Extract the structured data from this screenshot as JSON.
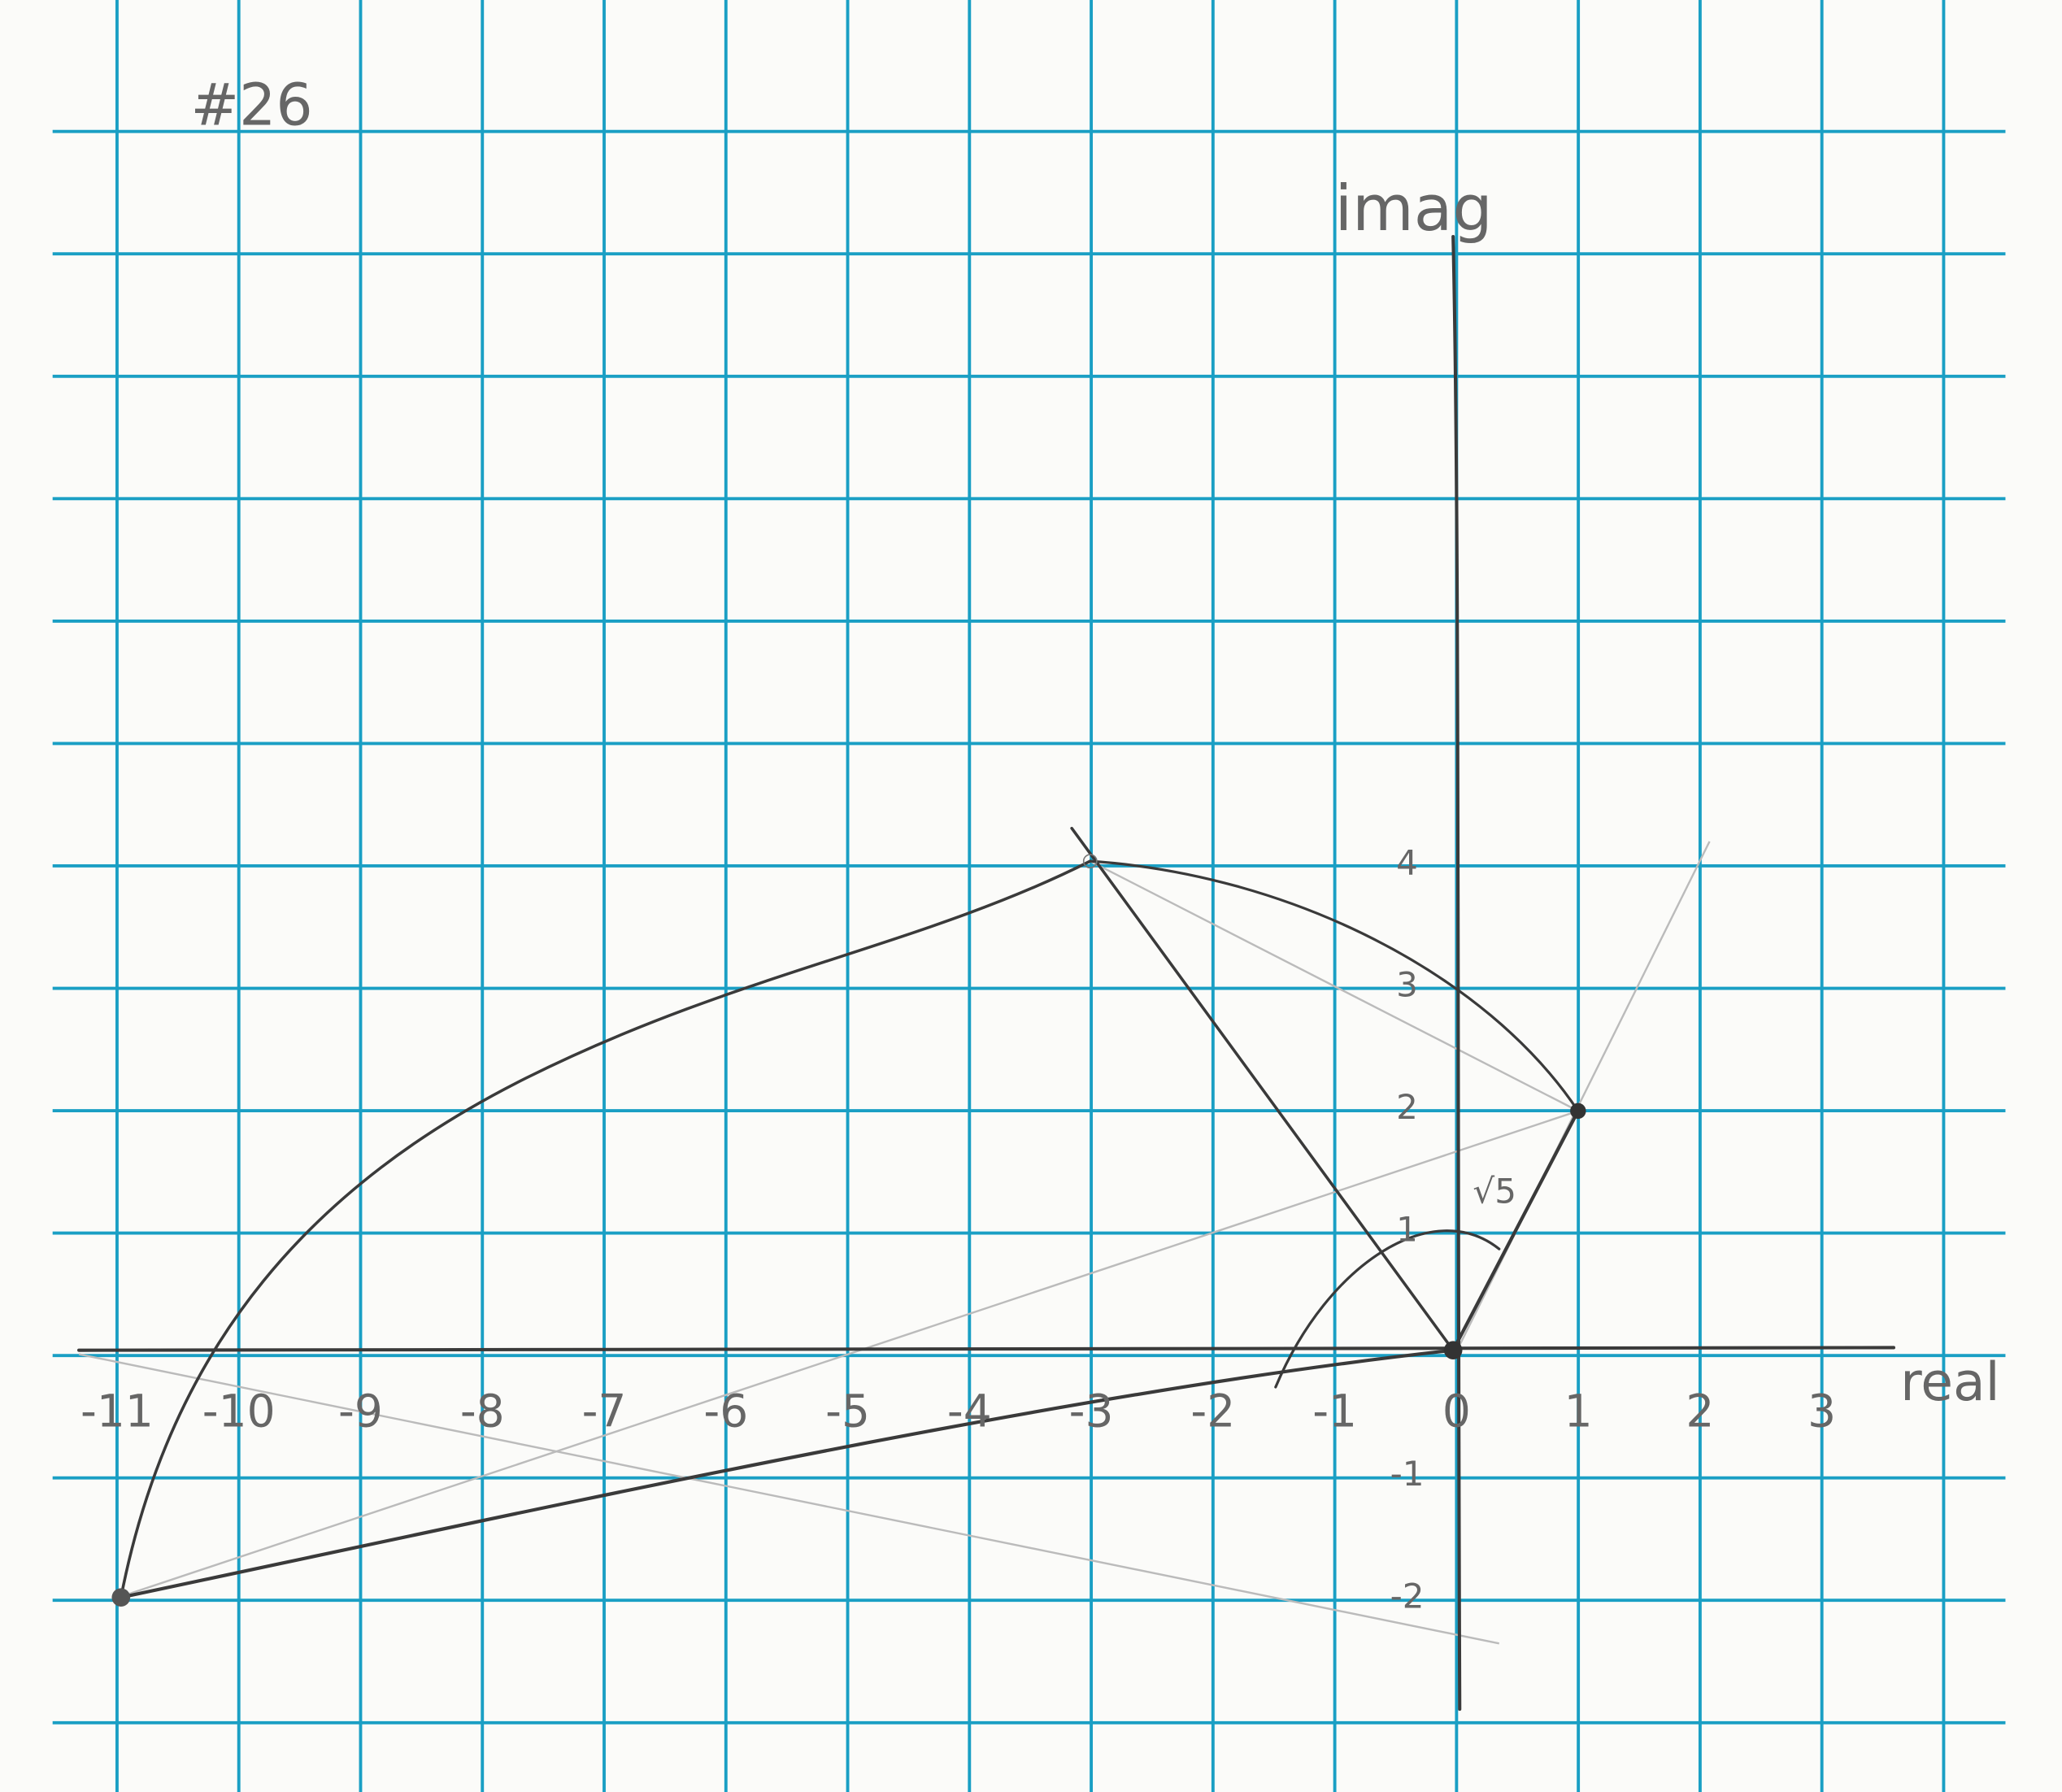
{
  "header": {
    "title": "#26"
  },
  "axes": {
    "vertical_label": "imag",
    "horizontal_label": "real",
    "real_ticks": [
      "-11",
      "-10",
      "-9",
      "-8",
      "-7",
      "-6",
      "-5",
      "-4",
      "-3",
      "-2",
      "-1",
      "0",
      "1",
      "2",
      "3"
    ],
    "imag_ticks": [
      "4",
      "3",
      "2",
      "1",
      "-1",
      "-2"
    ]
  },
  "annotation": "√5"
}
